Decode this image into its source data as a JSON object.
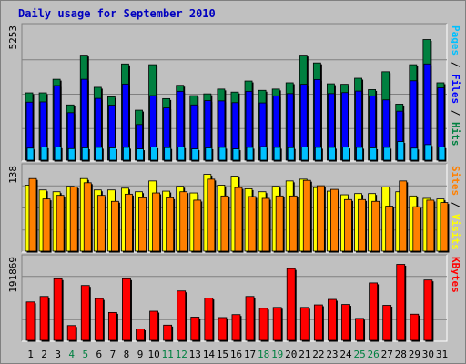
{
  "title": "Daily usage for September 2010",
  "colors": {
    "title": "#0000c0",
    "hits": "#008040",
    "files": "#0000ff",
    "pages": "#00c0ff",
    "visits": "#ffff00",
    "sites": "#ff8000",
    "kbytes": "#ff0000",
    "plot_bg": "#c0c0c0",
    "bevel_light": "#ffffff",
    "bevel_dark": "#808080",
    "weekend_label": "#008040",
    "weekday_label": "#000000"
  },
  "chart_data": [
    {
      "type": "bar",
      "name": "hits-files-pages",
      "y_max_label": "5253",
      "ylim": [
        0,
        5253
      ],
      "legend": [
        {
          "text": "Pages",
          "color": "#00c0ff"
        },
        {
          "text": " / ",
          "color": "#000000"
        },
        {
          "text": "Files",
          "color": "#0000ff"
        },
        {
          "text": " / ",
          "color": "#000000"
        },
        {
          "text": "Hits",
          "color": "#008040"
        }
      ],
      "series": [
        {
          "name": "Hits",
          "values": [
            2680,
            2680,
            3220,
            2200,
            4180,
            2900,
            2520,
            3830,
            1990,
            3800,
            2450,
            2980,
            2570,
            2640,
            2830,
            2710,
            3150,
            2780,
            2830,
            3080,
            4180,
            3870,
            3040,
            3020,
            3260,
            2810,
            3520,
            2230,
            3800,
            4800,
            3080
          ]
        },
        {
          "name": "Files",
          "values": [
            2310,
            2320,
            2970,
            1890,
            3220,
            2460,
            2190,
            3030,
            1420,
            2570,
            2080,
            2740,
            2200,
            2370,
            2360,
            2290,
            2740,
            2280,
            2560,
            2650,
            3020,
            3210,
            2650,
            2690,
            2750,
            2560,
            2400,
            1950,
            3160,
            3830,
            2880
          ]
        },
        {
          "name": "Pages",
          "values": [
            480,
            530,
            530,
            460,
            490,
            510,
            490,
            510,
            450,
            530,
            500,
            530,
            450,
            490,
            510,
            450,
            510,
            540,
            510,
            500,
            530,
            510,
            510,
            520,
            510,
            490,
            510,
            740,
            480,
            620,
            530
          ]
        }
      ]
    },
    {
      "type": "bar",
      "name": "visits-sites",
      "y_max_label": "138",
      "ylim": [
        0,
        138
      ],
      "legend": [
        {
          "text": "Sites",
          "color": "#ff8000"
        },
        {
          "text": " / ",
          "color": "#000000"
        },
        {
          "text": "Visits",
          "color": "#ffff00"
        }
      ],
      "series": [
        {
          "name": "Visits",
          "values": [
            110,
            102,
            99,
            108,
            121,
            102,
            102,
            105,
            99,
            117,
            100,
            108,
            97,
            128,
            110,
            125,
            104,
            99,
            108,
            117,
            120,
            106,
            100,
            94,
            96,
            96,
            107,
            99,
            92,
            88,
            87
          ]
        },
        {
          "name": "Sites",
          "values": [
            121,
            87,
            93,
            107,
            114,
            93,
            83,
            95,
            89,
            97,
            89,
            99,
            85,
            120,
            92,
            106,
            91,
            88,
            92,
            92,
            118,
            109,
            103,
            86,
            86,
            83,
            75,
            117,
            74,
            85,
            81
          ]
        }
      ]
    },
    {
      "type": "bar",
      "name": "kbytes",
      "y_max_label": "191869",
      "ylim": [
        0,
        191869
      ],
      "legend": [
        {
          "text": "KBytes",
          "color": "#ff0000"
        }
      ],
      "series": [
        {
          "name": "KBytes",
          "values": [
            91000,
            104000,
            146000,
            35000,
            130000,
            99000,
            66000,
            146000,
            27000,
            69000,
            36000,
            117000,
            55000,
            100000,
            54000,
            61000,
            104000,
            76000,
            78000,
            170000,
            78000,
            84000,
            97000,
            85000,
            52000,
            136000,
            83000,
            180000,
            62000,
            143000,
            0
          ]
        }
      ]
    }
  ],
  "x_categories": [
    "1",
    "2",
    "3",
    "4",
    "5",
    "6",
    "7",
    "8",
    "9",
    "10",
    "11",
    "12",
    "13",
    "14",
    "15",
    "16",
    "17",
    "18",
    "19",
    "20",
    "21",
    "22",
    "23",
    "24",
    "25",
    "26",
    "27",
    "28",
    "29",
    "30",
    "31"
  ],
  "weekend_days": [
    "4",
    "5",
    "11",
    "12",
    "18",
    "19",
    "25",
    "26"
  ]
}
